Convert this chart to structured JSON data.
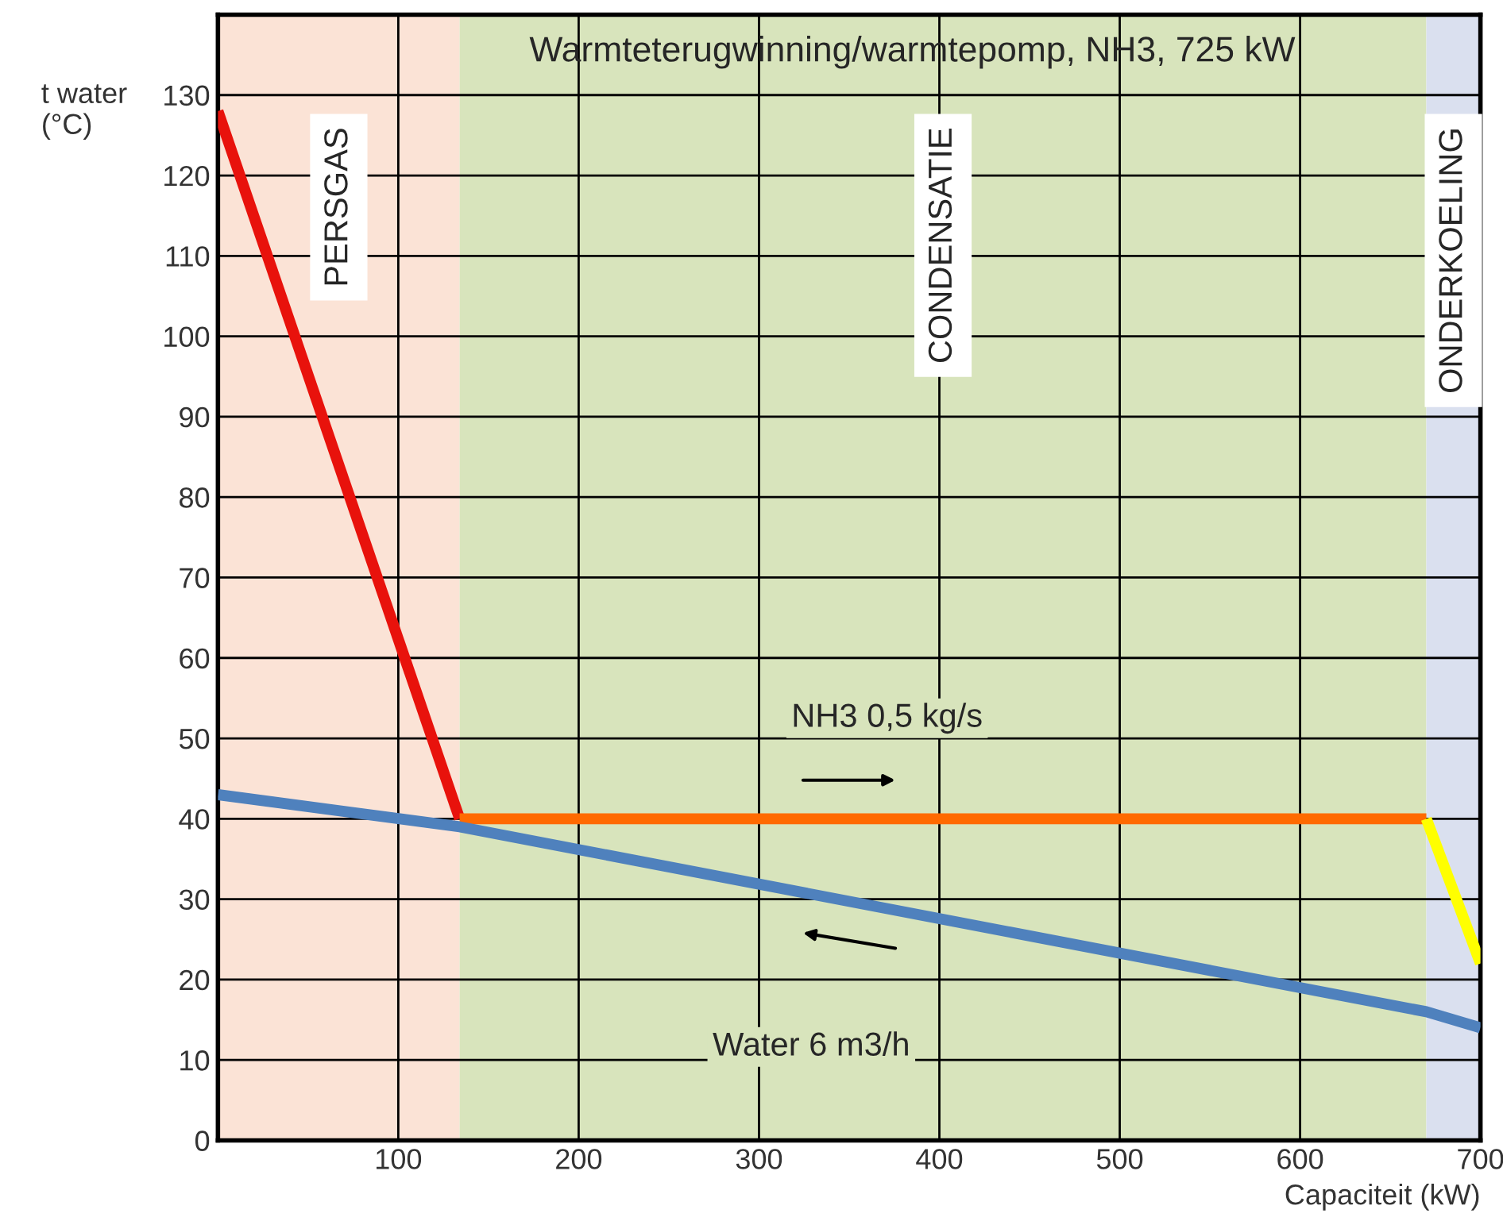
{
  "chart_data": {
    "type": "line",
    "title": "Warmteterugwinning/warmtepomp, NH3, 725 kW",
    "xlabel": "Capaciteit (kW)",
    "ylabel": "t water\n(°C)",
    "series": [
      {
        "color": "#e8120c",
        "x": [
          0,
          134
        ],
        "values": [
          128,
          40
        ]
      },
      {
        "color": "#ff6a00",
        "x": [
          134,
          670
        ],
        "values": [
          40,
          40
        ]
      },
      {
        "color": "#ffff00",
        "x": [
          670,
          700
        ],
        "values": [
          40,
          22
        ]
      },
      {
        "color": "#4f81bd",
        "x": [
          0,
          134,
          670,
          700
        ],
        "values": [
          43,
          39,
          16,
          14
        ]
      }
    ],
    "bands": [
      {
        "axis": "x",
        "from": 0,
        "to": 134,
        "label": "PERSGAS",
        "color": "#fbe3d6"
      },
      {
        "axis": "x",
        "from": 134,
        "to": 670,
        "label": "CONDENSATIE",
        "color": "#d8e4bc"
      },
      {
        "axis": "x",
        "from": 670,
        "to": 700,
        "label": "ONDERKOELING",
        "color": "#dae0ef"
      }
    ],
    "annotations": [
      "NH3 0,5 kg/s",
      "Water 6 m3/h"
    ],
    "xlim": [
      0,
      700
    ],
    "xticks": [
      100,
      200,
      300,
      400,
      500,
      600,
      700
    ],
    "ylim": [
      0,
      140
    ],
    "yticks": [
      0,
      10,
      20,
      30,
      40,
      50,
      60,
      70,
      80,
      90,
      100,
      110,
      120,
      130
    ],
    "grid": true,
    "line_style": "solid",
    "marker": "none"
  }
}
